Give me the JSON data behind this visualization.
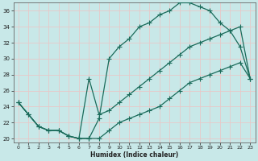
{
  "xlabel": "Humidex (Indice chaleur)",
  "bg_color": "#c8e8e8",
  "grid_color": "#e8c8c8",
  "line_color": "#1a6b5a",
  "xlim": [
    -0.5,
    23.5
  ],
  "ylim": [
    19.5,
    37.0
  ],
  "xticks": [
    0,
    1,
    2,
    3,
    4,
    5,
    6,
    7,
    8,
    9,
    10,
    11,
    12,
    13,
    14,
    15,
    16,
    17,
    18,
    19,
    20,
    21,
    22,
    23
  ],
  "yticks": [
    20,
    22,
    24,
    26,
    28,
    30,
    32,
    34,
    36
  ],
  "curve1_x": [
    0,
    1,
    2,
    3,
    4,
    5,
    6,
    7,
    8,
    9,
    10,
    11,
    12,
    13,
    14,
    15,
    16,
    17,
    18,
    19,
    20,
    21,
    22,
    23
  ],
  "curve1_y": [
    24.5,
    23.0,
    21.5,
    21.0,
    21.0,
    20.3,
    20.0,
    20.0,
    22.5,
    30.0,
    31.5,
    32.5,
    34.0,
    34.5,
    35.5,
    36.0,
    37.0,
    37.0,
    36.5,
    36.0,
    34.5,
    33.5,
    31.5,
    27.5
  ],
  "curve2_x": [
    0,
    1,
    2,
    3,
    4,
    5,
    6,
    7,
    8,
    9,
    10,
    11,
    12,
    13,
    14,
    15,
    16,
    17,
    18,
    19,
    20,
    21,
    22,
    23
  ],
  "curve2_y": [
    24.5,
    23.0,
    21.5,
    21.0,
    21.0,
    20.3,
    20.0,
    27.5,
    23.0,
    23.5,
    24.5,
    25.5,
    26.5,
    27.5,
    28.5,
    29.5,
    30.5,
    31.5,
    32.0,
    32.5,
    33.0,
    33.5,
    34.0,
    27.5
  ],
  "curve3_x": [
    0,
    1,
    2,
    3,
    4,
    5,
    6,
    7,
    8,
    9,
    10,
    11,
    12,
    13,
    14,
    15,
    16,
    17,
    18,
    19,
    20,
    21,
    22,
    23
  ],
  "curve3_y": [
    24.5,
    23.0,
    21.5,
    21.0,
    21.0,
    20.3,
    20.0,
    20.0,
    20.0,
    21.0,
    22.0,
    22.5,
    23.0,
    23.5,
    24.0,
    25.0,
    26.0,
    27.0,
    27.5,
    28.0,
    28.5,
    29.0,
    29.5,
    27.5
  ]
}
